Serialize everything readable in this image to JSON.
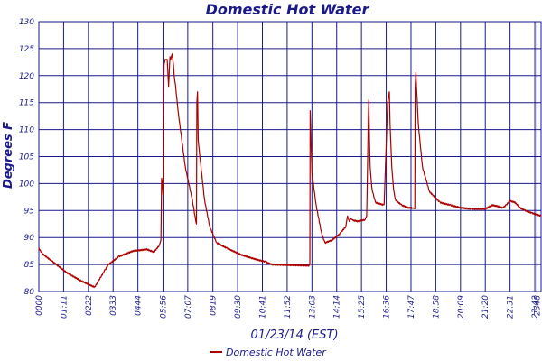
{
  "chart_data": {
    "type": "line",
    "title": "Domestic Hot Water",
    "xlabel": "01/23/14 (EST)",
    "ylabel": "Degrees F",
    "ylim": [
      80,
      130
    ],
    "yticks": [
      80,
      85,
      90,
      95,
      100,
      105,
      110,
      115,
      120,
      125,
      130
    ],
    "xlim": [
      0,
      1440
    ],
    "xtick_labels": [
      "0000",
      "01:11",
      "0222",
      "0333",
      "0444",
      "05:56",
      "07:07",
      "0819",
      "09:30",
      "10:41",
      "11:52",
      "13:03",
      "14:14",
      "15:25",
      "16:36",
      "17:47",
      "18:58",
      "20:09",
      "21:20",
      "22:31",
      "23:42",
      "2348"
    ],
    "xtick_minutes": [
      0,
      71,
      142,
      213,
      284,
      356,
      427,
      499,
      570,
      641,
      712,
      783,
      854,
      925,
      996,
      1067,
      1138,
      1209,
      1280,
      1351,
      1422,
      1428
    ],
    "grid": true,
    "legend": {
      "position": "bottom-center"
    },
    "colors": {
      "series": "#aa0000",
      "grid": "#1a1a8c",
      "text": "#1a1a8c"
    },
    "series": [
      {
        "name": "Domestic Hot Water",
        "x": [
          0,
          10,
          40,
          80,
          120,
          160,
          190,
          200,
          230,
          270,
          310,
          330,
          345,
          350,
          352,
          354,
          356,
          359,
          362,
          368,
          372,
          374,
          376,
          378,
          382,
          386,
          388,
          392,
          400,
          420,
          440,
          450,
          452,
          453,
          455,
          457,
          460,
          475,
          490,
          510,
          540,
          580,
          620,
          650,
          667,
          775,
          777,
          778,
          783,
          795,
          810,
          820,
          840,
          860,
          880,
          885,
          890,
          895,
          900,
          915,
          935,
          940,
          945,
          946,
          948,
          950,
          955,
          965,
          990,
          1000,
          1005,
          1007,
          1012,
          1017,
          1022,
          1040,
          1060,
          1072,
          1078,
          1079,
          1081,
          1088,
          1100,
          1120,
          1150,
          1180,
          1210,
          1240,
          1280,
          1300,
          1315,
          1330,
          1340,
          1350,
          1365,
          1380,
          1394,
          1415,
          1440
        ],
        "y": [
          88,
          87,
          85.5,
          83.5,
          82,
          80.8,
          84,
          85,
          86.5,
          87.5,
          87.8,
          87.3,
          88.5,
          89.5,
          101,
          100,
          98,
          122,
          123,
          123,
          118,
          121,
          123.5,
          123,
          124,
          122,
          120,
          118,
          113,
          103,
          97,
          93,
          92.5,
          115,
          117,
          108,
          106,
          97,
          92,
          89,
          88,
          86.8,
          86,
          85.5,
          85,
          84.8,
          85.2,
          113.5,
          102,
          96,
          91,
          89,
          89.5,
          90.5,
          92,
          94,
          93,
          93.5,
          93.2,
          93,
          93.3,
          94,
          113,
          115.5,
          108,
          103,
          99,
          96.5,
          96,
          115,
          117,
          111,
          103,
          99,
          97,
          96,
          95.5,
          95.5,
          95.3,
          118,
          120.5,
          111,
          103,
          98.5,
          96.5,
          96,
          95.5,
          95.3,
          95.3,
          96,
          95.8,
          95.5,
          96,
          96.8,
          96.5,
          95.5,
          95,
          94.5,
          94
        ]
      }
    ]
  }
}
